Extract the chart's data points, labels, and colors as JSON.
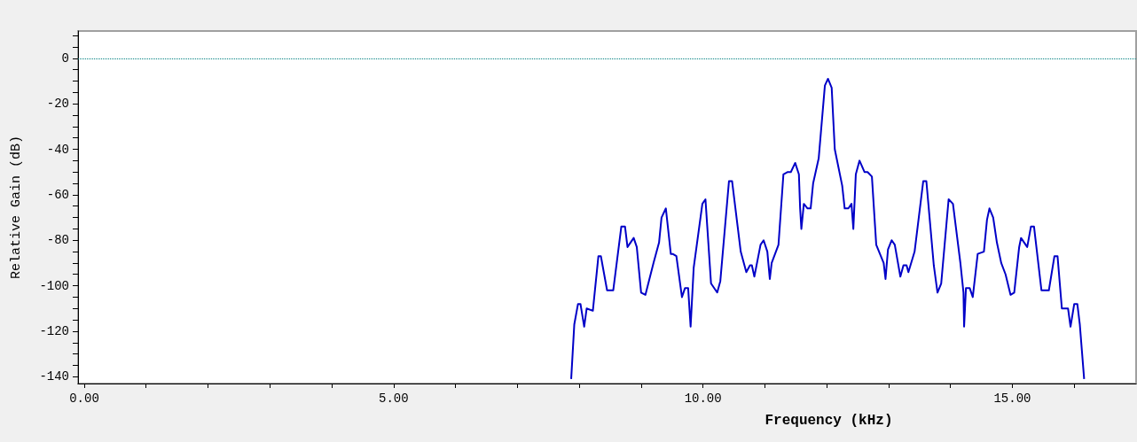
{
  "chart_data": {
    "type": "line",
    "xlabel": "Frequency (kHz)",
    "ylabel": "Relative Gain (dB)",
    "xlim": [
      -0.1,
      17
    ],
    "ylim": [
      -143,
      12
    ],
    "xticks": [
      {
        "value": 0,
        "label": "0.00"
      },
      {
        "value": 1,
        "label": null
      },
      {
        "value": 2,
        "label": null
      },
      {
        "value": 3,
        "label": null
      },
      {
        "value": 4,
        "label": null
      },
      {
        "value": 5,
        "label": "5.00"
      },
      {
        "value": 6,
        "label": null
      },
      {
        "value": 7,
        "label": null
      },
      {
        "value": 8,
        "label": null
      },
      {
        "value": 9,
        "label": null
      },
      {
        "value": 10,
        "label": "10.00"
      },
      {
        "value": 11,
        "label": null
      },
      {
        "value": 12,
        "label": null
      },
      {
        "value": 13,
        "label": null
      },
      {
        "value": 14,
        "label": null
      },
      {
        "value": 15,
        "label": "15.00"
      },
      {
        "value": 16,
        "label": null
      }
    ],
    "yticks": [
      -140,
      {
        "value": -135,
        "label": null
      },
      {
        "value": -130,
        "label": null
      },
      {
        "value": -125,
        "label": null
      },
      -120,
      {
        "value": -115,
        "label": null
      },
      {
        "value": -110,
        "label": null
      },
      {
        "value": -105,
        "label": null
      },
      -100,
      {
        "value": -95,
        "label": null
      },
      {
        "value": -90,
        "label": null
      },
      {
        "value": -85,
        "label": null
      },
      -80,
      {
        "value": -75,
        "label": null
      },
      {
        "value": -70,
        "label": null
      },
      {
        "value": -65,
        "label": null
      },
      -60,
      {
        "value": -55,
        "label": null
      },
      {
        "value": -50,
        "label": null
      },
      {
        "value": -45,
        "label": null
      },
      -40,
      {
        "value": -35,
        "label": null
      },
      {
        "value": -30,
        "label": null
      },
      {
        "value": -25,
        "label": null
      },
      -20,
      {
        "value": -15,
        "label": null
      },
      {
        "value": -10,
        "label": null
      },
      {
        "value": -5,
        "label": null
      },
      0,
      {
        "value": 5,
        "label": null
      },
      {
        "value": 10,
        "label": null
      }
    ],
    "grid": false,
    "marker": "none",
    "line_style": "solid",
    "ref_lines": [
      {
        "axis": "y",
        "value": 0,
        "color": "#008080",
        "line_style": "dotted"
      }
    ],
    "series": [
      {
        "color": "#0000c8",
        "x": [
          7.87,
          7.92,
          7.98,
          8.02,
          8.08,
          8.12,
          8.22,
          8.31,
          8.35,
          8.45,
          8.55,
          8.68,
          8.74,
          8.78,
          8.88,
          8.93,
          9.0,
          9.07,
          9.2,
          9.29,
          9.33,
          9.4,
          9.48,
          9.51,
          9.57,
          9.66,
          9.71,
          9.76,
          9.8,
          9.85,
          9.99,
          10.04,
          10.13,
          10.23,
          10.28,
          10.42,
          10.47,
          10.61,
          10.7,
          10.76,
          10.79,
          10.83,
          10.93,
          10.98,
          11.04,
          11.08,
          11.11,
          11.22,
          11.3,
          11.37,
          11.42,
          11.49,
          11.55,
          11.57,
          11.59,
          11.63,
          11.69,
          11.74,
          11.78,
          11.87,
          11.97,
          12.02,
          12.08,
          12.13,
          12.25,
          12.29,
          12.35,
          12.4,
          12.43,
          12.47,
          12.53,
          12.61,
          12.66,
          12.73,
          12.8,
          12.92,
          12.95,
          12.99,
          13.05,
          13.1,
          13.19,
          13.24,
          13.29,
          13.32,
          13.42,
          13.56,
          13.61,
          13.73,
          13.79,
          13.85,
          13.97,
          14.04,
          14.16,
          14.21,
          14.22,
          14.25,
          14.31,
          14.36,
          14.44,
          14.54,
          14.59,
          14.63,
          14.69,
          14.75,
          14.82,
          14.89,
          14.97,
          15.03,
          15.11,
          15.14,
          15.24,
          15.3,
          15.35,
          15.47,
          15.59,
          15.68,
          15.73,
          15.8,
          15.9,
          15.94,
          16.0,
          16.05,
          16.09,
          16.16
        ],
        "values": [
          -141,
          -117,
          -108,
          -108,
          -118,
          -110,
          -111,
          -87,
          -87,
          -102,
          -102,
          -74,
          -74,
          -83,
          -79,
          -83,
          -103,
          -104,
          -90,
          -81,
          -70,
          -66,
          -86,
          -86,
          -87,
          -105,
          -101,
          -101,
          -118,
          -92,
          -64,
          -62,
          -99,
          -103,
          -98,
          -54,
          -54,
          -85,
          -94,
          -91,
          -91,
          -96,
          -82,
          -80,
          -85,
          -97,
          -90,
          -82,
          -51,
          -50,
          -50,
          -46,
          -51,
          -66,
          -75,
          -64,
          -66,
          -66,
          -55,
          -44,
          -12,
          -9,
          -13,
          -40,
          -56,
          -66,
          -66,
          -64,
          -75,
          -51,
          -45,
          -50,
          -50,
          -52,
          -82,
          -90,
          -97,
          -84,
          -80,
          -82,
          -96,
          -91,
          -91,
          -94,
          -85,
          -54,
          -54,
          -91,
          -103,
          -99,
          -62,
          -64,
          -90,
          -103,
          -118,
          -101,
          -101,
          -105,
          -86,
          -85,
          -71,
          -66,
          -70,
          -81,
          -90,
          -95,
          -104,
          -103,
          -83,
          -79,
          -83,
          -74,
          -74,
          -102,
          -102,
          -87,
          -87,
          -110,
          -110,
          -118,
          -108,
          -108,
          -117,
          -141
        ]
      }
    ]
  }
}
